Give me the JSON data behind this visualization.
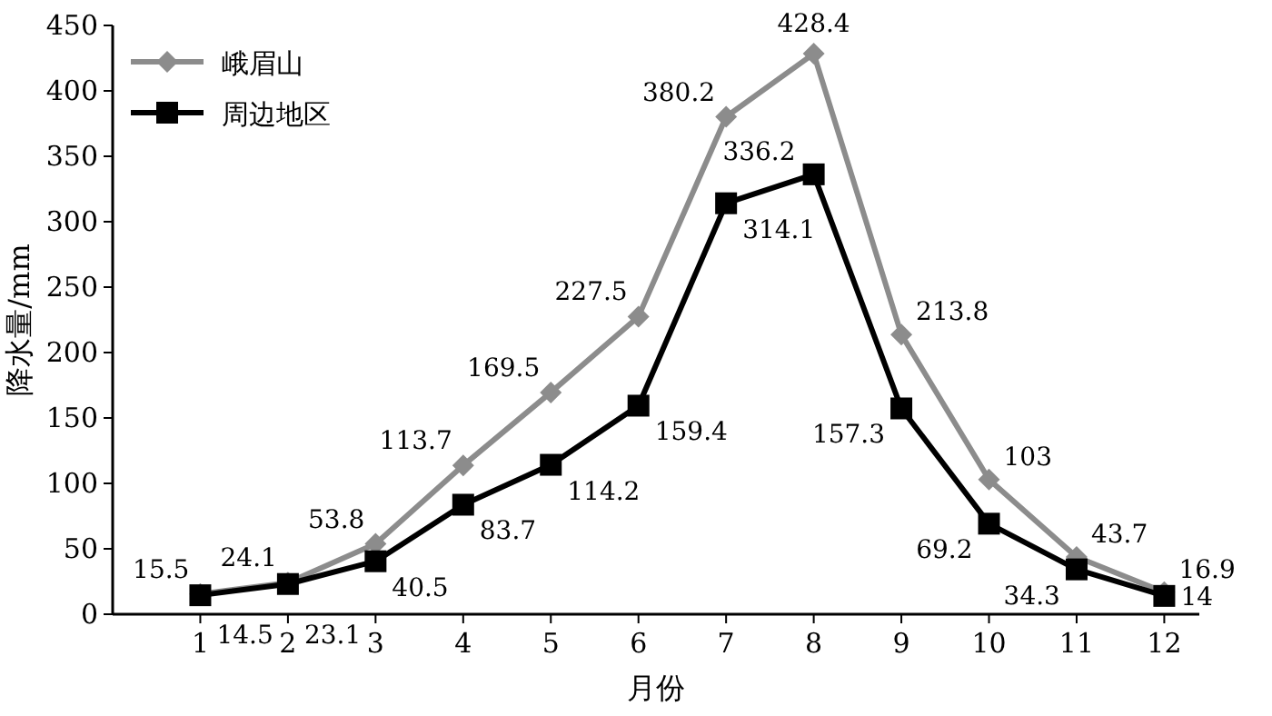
{
  "chart_data": {
    "type": "line",
    "xlabel": "月份",
    "ylabel": "降水量/mm",
    "x": [
      1,
      2,
      3,
      4,
      5,
      6,
      7,
      8,
      9,
      10,
      11,
      12
    ],
    "xlim": [
      0,
      12.4
    ],
    "xticks": [
      1,
      2,
      3,
      4,
      5,
      6,
      7,
      8,
      9,
      10,
      11,
      12
    ],
    "ylim": [
      0,
      450
    ],
    "yticks": [
      0,
      50,
      100,
      150,
      200,
      250,
      300,
      350,
      400,
      450
    ],
    "grid": false,
    "legend": "top left",
    "data_labels": true,
    "series": [
      {
        "name": "峨眉山",
        "color": "#8c8c8c",
        "marker": "diamond",
        "values": [
          15.5,
          24.1,
          53.8,
          113.7,
          169.5,
          227.5,
          380.2,
          428.4,
          213.8,
          103,
          43.7,
          16.9
        ]
      },
      {
        "name": "周边地区",
        "color": "#000000",
        "marker": "square",
        "values": [
          14.5,
          23.1,
          40.5,
          83.7,
          114.2,
          159.4,
          314.1,
          336.2,
          157.3,
          69.2,
          34.3,
          14
        ]
      }
    ]
  }
}
